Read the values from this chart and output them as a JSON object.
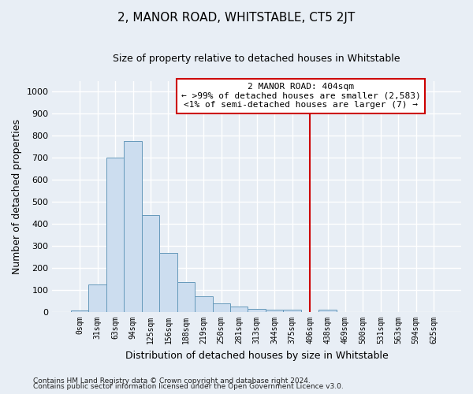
{
  "title": "2, MANOR ROAD, WHITSTABLE, CT5 2JT",
  "subtitle": "Size of property relative to detached houses in Whitstable",
  "xlabel": "Distribution of detached houses by size in Whitstable",
  "ylabel": "Number of detached properties",
  "footnote1": "Contains HM Land Registry data © Crown copyright and database right 2024.",
  "footnote2": "Contains public sector information licensed under the Open Government Licence v3.0.",
  "bar_labels": [
    "0sqm",
    "31sqm",
    "63sqm",
    "94sqm",
    "125sqm",
    "156sqm",
    "188sqm",
    "219sqm",
    "250sqm",
    "281sqm",
    "313sqm",
    "344sqm",
    "375sqm",
    "406sqm",
    "438sqm",
    "469sqm",
    "500sqm",
    "531sqm",
    "563sqm",
    "594sqm",
    "625sqm"
  ],
  "bar_values": [
    8,
    125,
    700,
    775,
    440,
    270,
    135,
    70,
    40,
    25,
    15,
    12,
    10,
    0,
    10,
    0,
    0,
    0,
    0,
    0,
    0
  ],
  "bar_color": "#ccddef",
  "bar_edge_color": "#6699bb",
  "vline_x": 13,
  "vline_color": "#cc0000",
  "ylim": [
    0,
    1050
  ],
  "yticks": [
    0,
    100,
    200,
    300,
    400,
    500,
    600,
    700,
    800,
    900,
    1000
  ],
  "annotation_line1": "2 MANOR ROAD: 404sqm",
  "annotation_line2": "← >99% of detached houses are smaller (2,583)",
  "annotation_line3": "<1% of semi-detached houses are larger (7) →",
  "annotation_box_color": "#ffffff",
  "annotation_box_edge": "#cc0000",
  "bg_color": "#e8eef5",
  "grid_color": "#ffffff",
  "title_fontsize": 11,
  "subtitle_fontsize": 9,
  "annot_fontsize": 8,
  "ylabel_fontsize": 9,
  "xlabel_fontsize": 9,
  "tick_fontsize": 8,
  "xtick_fontsize": 7
}
